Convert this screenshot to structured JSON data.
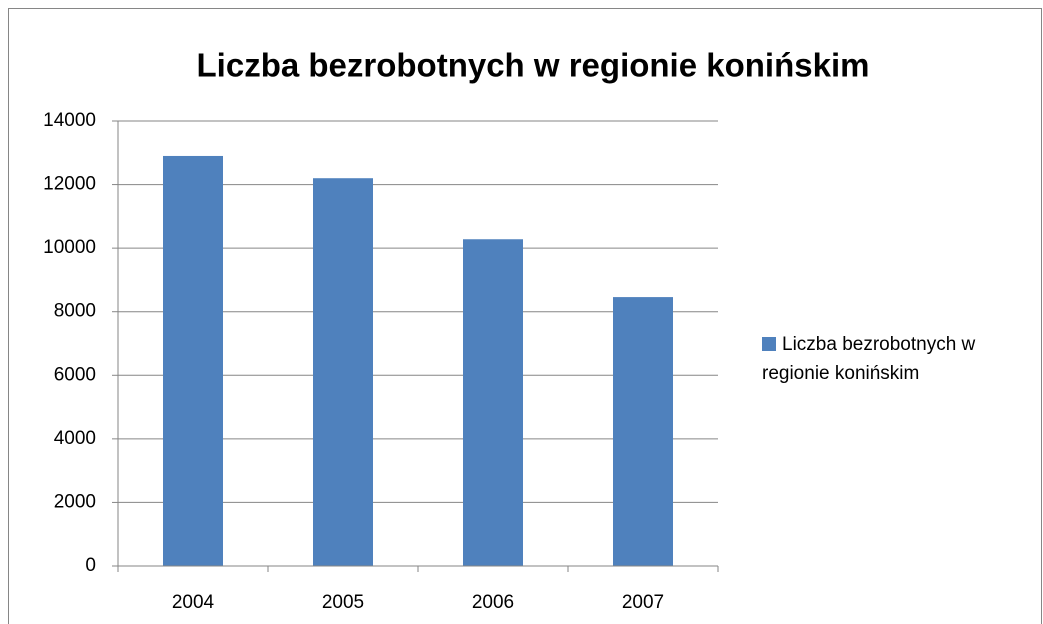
{
  "chart_data": {
    "type": "bar",
    "title": "Liczba bezrobotnych w regionie konińskim",
    "categories": [
      "2004",
      "2005",
      "2006",
      "2007"
    ],
    "series": [
      {
        "name": "Liczba bezrobotnych w regionie konińskim",
        "color": "#4f81bd",
        "values": [
          12900,
          12200,
          10280,
          8460
        ]
      }
    ],
    "ylim": [
      0,
      14000
    ],
    "yticks": [
      0,
      2000,
      4000,
      6000,
      8000,
      10000,
      12000,
      14000
    ],
    "grid": true,
    "legend": "right"
  }
}
